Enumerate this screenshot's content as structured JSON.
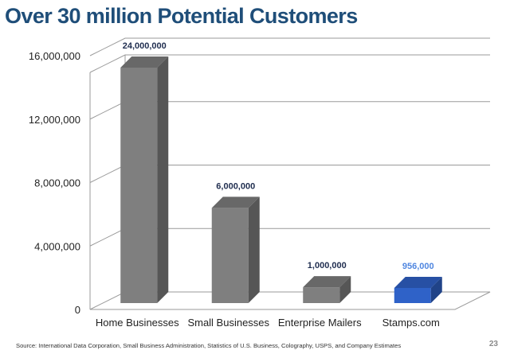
{
  "page": {
    "title": "Over 30 million Potential Customers",
    "source": "Source: International Data Corporation, Small Business Administration, Statistics of U.S. Business, Colography, USPS, and Company Estimates",
    "page_number": "23"
  },
  "chart_data": {
    "type": "bar",
    "title": "",
    "xlabel": "",
    "ylabel": "",
    "categories": [
      "Home Businesses",
      "Small Businesses",
      "Enterprise Mailers",
      "Stamps.com"
    ],
    "values": [
      24000000,
      6000000,
      1000000,
      956000
    ],
    "data_labels": [
      "24,000,000",
      "6,000,000",
      "1,000,000",
      "956,000"
    ],
    "ylim": [
      0,
      18000000
    ],
    "y_ticks": [
      0,
      4000000,
      8000000,
      12000000,
      16000000
    ],
    "y_tick_labels": [
      "0",
      "4,000,000",
      "8,000,000",
      "12,000,000",
      "16,000,000"
    ],
    "axis_break_note": "first bar exceeds axis maximum",
    "grid": true,
    "bar_style": "3d",
    "colors": [
      "#7f7f7f",
      "#7f7f7f",
      "#7f7f7f",
      "#2f62c8"
    ],
    "label_colors": [
      "#1f2d4f",
      "#1f2d4f",
      "#1f2d4f",
      "#4f86e0"
    ]
  }
}
